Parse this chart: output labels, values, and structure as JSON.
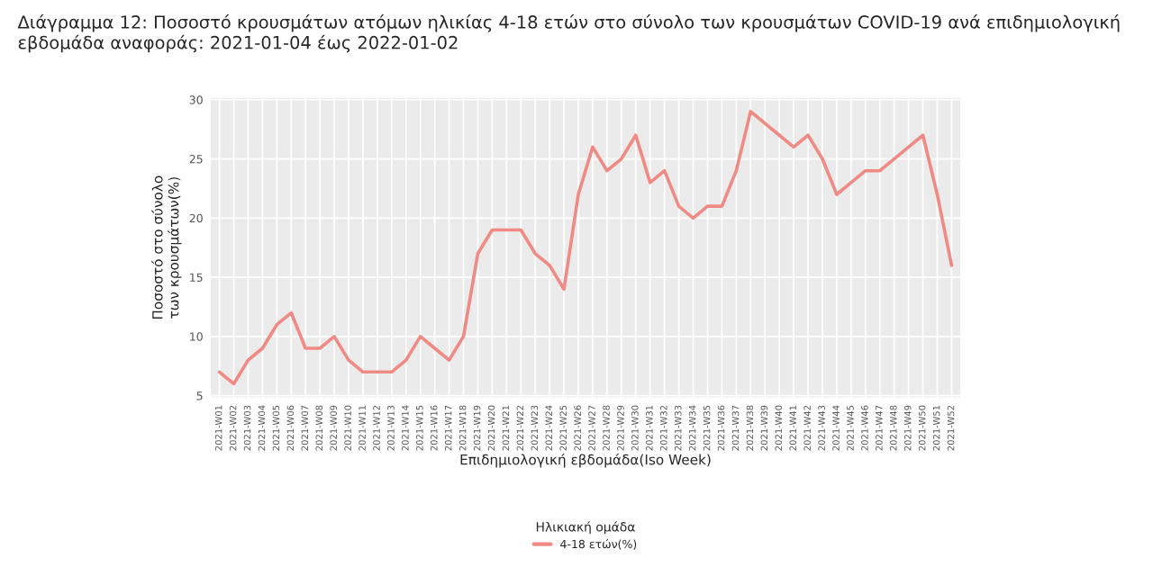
{
  "chart_data": {
    "type": "line",
    "title": "Διάγραμμα 12: Ποσοστό κρουσμάτων ατόμων ηλικίας 4-18 ετών στο σύνολο των κρουσμάτων COVID-19 ανά επιδημιολογική εβδομάδα αναφοράς: 2021-01-04 έως 2022-01-02",
    "xlabel": "Επιδημιολογική εβδομάδα(Iso Week)",
    "ylabel": "Ποσοστό στο σύνολο\nτων κρουσμάτων(%)",
    "legend_title": "Ηλικιακή ομάδα",
    "categories": [
      "2021-W01",
      "2021-W02",
      "2021-W03",
      "2021-W04",
      "2021-W05",
      "2021-W06",
      "2021-W07",
      "2021-W08",
      "2021-W09",
      "2021-W10",
      "2021-W11",
      "2021-W12",
      "2021-W13",
      "2021-W14",
      "2021-W15",
      "2021-W16",
      "2021-W17",
      "2021-W18",
      "2021-W19",
      "2021-W20",
      "2021-W21",
      "2021-W22",
      "2021-W23",
      "2021-W24",
      "2021-W25",
      "2021-W26",
      "2021-W27",
      "2021-W28",
      "2021-W29",
      "2021-W30",
      "2021-W31",
      "2021-W32",
      "2021-W33",
      "2021-W34",
      "2021-W35",
      "2021-W36",
      "2021-W37",
      "2021-W38",
      "2021-W39",
      "2021-W40",
      "2021-W41",
      "2021-W42",
      "2021-W43",
      "2021-W44",
      "2021-W45",
      "2021-W46",
      "2021-W47",
      "2021-W48",
      "2021-W49",
      "2021-W50",
      "2021-W51",
      "2021-W52"
    ],
    "series": [
      {
        "name": "4-18 ετών(%)",
        "color": "#f08a84",
        "values": [
          7,
          6,
          8,
          9,
          11,
          12,
          9,
          9,
          10,
          8,
          7,
          7,
          7,
          8,
          10,
          9,
          8,
          10,
          17,
          19,
          19,
          19,
          17,
          16,
          14,
          22,
          26,
          24,
          25,
          27,
          23,
          24,
          21,
          20,
          21,
          21,
          24,
          29,
          28,
          27,
          26,
          27,
          25,
          22,
          23,
          24,
          24,
          25,
          26,
          27,
          22,
          16
        ]
      }
    ],
    "ylim": [
      4.85,
      30.15
    ],
    "yticks": [
      5,
      10,
      15,
      20,
      25,
      30
    ],
    "grid": true,
    "legend": "bottom",
    "marker": "none",
    "line_style": "solid"
  }
}
